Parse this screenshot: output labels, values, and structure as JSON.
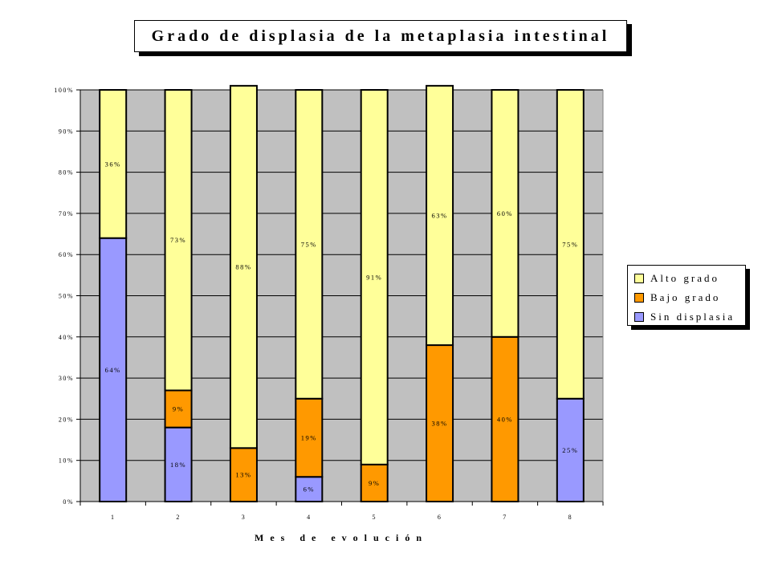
{
  "chart_data": {
    "type": "bar",
    "stacked": true,
    "normalized": true,
    "title": "Grado de displasia de la metaplasia intestinal",
    "xlabel": "Mes de evolución",
    "ylabel": "",
    "categories": [
      "1",
      "2",
      "3",
      "4",
      "5",
      "6",
      "7",
      "8"
    ],
    "ylim": [
      0,
      100
    ],
    "yticks": [
      "0%",
      "10%",
      "20%",
      "30%",
      "40%",
      "50%",
      "60%",
      "70%",
      "80%",
      "90%",
      "100%"
    ],
    "series": [
      {
        "name": "Sin displasia",
        "color": "#9999ff",
        "values": [
          64,
          18,
          0,
          6,
          0,
          0,
          0,
          25
        ],
        "labels": [
          "64%",
          "18%",
          "",
          "6%",
          "",
          "",
          "",
          "25%"
        ]
      },
      {
        "name": "Bajo grado",
        "color": "#ff9900",
        "values": [
          0,
          9,
          13,
          19,
          9,
          38,
          40,
          0
        ],
        "labels": [
          "",
          "9%",
          "13%",
          "19%",
          "9%",
          "38%",
          "40%",
          ""
        ]
      },
      {
        "name": "Alto grado",
        "color": "#ffff99",
        "values": [
          36,
          73,
          88,
          75,
          91,
          63,
          60,
          75
        ],
        "labels": [
          "36%",
          "73%",
          "88%",
          "75%",
          "91%",
          "63%",
          "60%",
          "75%"
        ]
      }
    ],
    "legend": {
      "position": "right",
      "order": [
        "Alto grado",
        "Bajo grado",
        "Sin displasia"
      ]
    },
    "grid": true,
    "plot_background": "#c0c0c0"
  }
}
